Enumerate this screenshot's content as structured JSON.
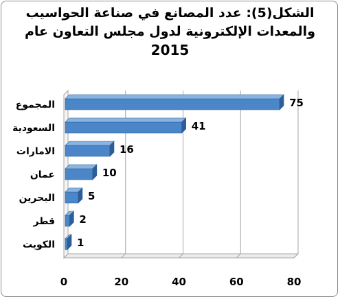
{
  "chart_data": {
    "type": "bar",
    "orientation": "horizontal",
    "title_line1": "الشكل(5): عدد المصانع في صناعة الحواسيب",
    "title_line2": "والمعدات الإلكترونية لدول مجلس التعاون عام",
    "title_year": "2015",
    "categories": [
      "المجموع",
      "السعودية",
      "الامارات",
      "عمان",
      "البحرين",
      "قطر",
      "الكويت"
    ],
    "values": [
      75,
      41,
      16,
      10,
      5,
      2,
      1
    ],
    "xlim": [
      0,
      80
    ],
    "xticks": [
      0,
      20,
      40,
      60,
      80
    ],
    "grid": true,
    "legend": "none",
    "bar_color": "#4a86c8",
    "bar_top_color": "#8ab4e0",
    "bar_side_color": "#2c5f99"
  }
}
